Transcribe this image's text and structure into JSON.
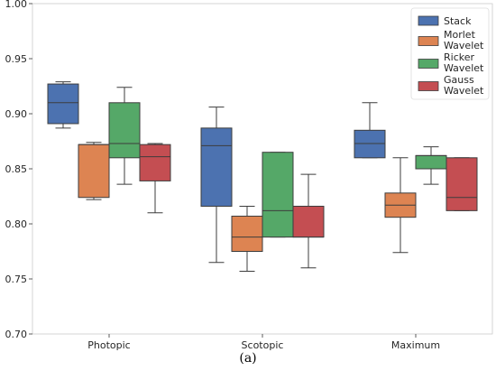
{
  "chart_data": {
    "type": "box",
    "caption": "(a)",
    "categories": [
      "Photopic",
      "Scotopic",
      "Maximum"
    ],
    "ylim": [
      0.7,
      1.0
    ],
    "yticks": [
      "0.70",
      "0.75",
      "0.80",
      "0.85",
      "0.90",
      "0.95",
      "1.00"
    ],
    "legend_position": "top-right",
    "grid": false,
    "series": [
      {
        "name": "Stack",
        "color": "#4c72b0",
        "boxes": [
          {
            "min": 0.887,
            "q1": 0.891,
            "median": 0.91,
            "q3": 0.927,
            "max": 0.929
          },
          {
            "min": 0.765,
            "q1": 0.816,
            "median": 0.871,
            "q3": 0.887,
            "max": 0.906
          },
          {
            "min": 0.86,
            "q1": 0.86,
            "median": 0.873,
            "q3": 0.885,
            "max": 0.91
          }
        ]
      },
      {
        "name": "Morlet Wavelet",
        "legend_lines": [
          "Morlet",
          "Wavelet"
        ],
        "color": "#dd8452",
        "boxes": [
          {
            "min": 0.822,
            "q1": 0.824,
            "median": 0.872,
            "q3": 0.872,
            "max": 0.874
          },
          {
            "min": 0.757,
            "q1": 0.775,
            "median": 0.788,
            "q3": 0.807,
            "max": 0.816
          },
          {
            "min": 0.774,
            "q1": 0.806,
            "median": 0.817,
            "q3": 0.828,
            "max": 0.86
          }
        ]
      },
      {
        "name": "Ricker Wavelet",
        "legend_lines": [
          "Ricker",
          "Wavelet"
        ],
        "color": "#55a868",
        "boxes": [
          {
            "min": 0.836,
            "q1": 0.86,
            "median": 0.873,
            "q3": 0.91,
            "max": 0.924
          },
          {
            "min": 0.788,
            "q1": 0.788,
            "median": 0.812,
            "q3": 0.865,
            "max": 0.865
          },
          {
            "min": 0.836,
            "q1": 0.85,
            "median": 0.862,
            "q3": 0.862,
            "max": 0.87
          }
        ]
      },
      {
        "name": "Gauss Wavelet",
        "legend_lines": [
          "Gauss",
          "Wavelet"
        ],
        "color": "#c44e52",
        "boxes": [
          {
            "min": 0.81,
            "q1": 0.839,
            "median": 0.861,
            "q3": 0.872,
            "max": 0.873
          },
          {
            "min": 0.76,
            "q1": 0.788,
            "median": 0.788,
            "q3": 0.816,
            "max": 0.845
          },
          {
            "min": 0.812,
            "q1": 0.812,
            "median": 0.824,
            "q3": 0.86,
            "max": 0.86
          }
        ]
      }
    ]
  }
}
